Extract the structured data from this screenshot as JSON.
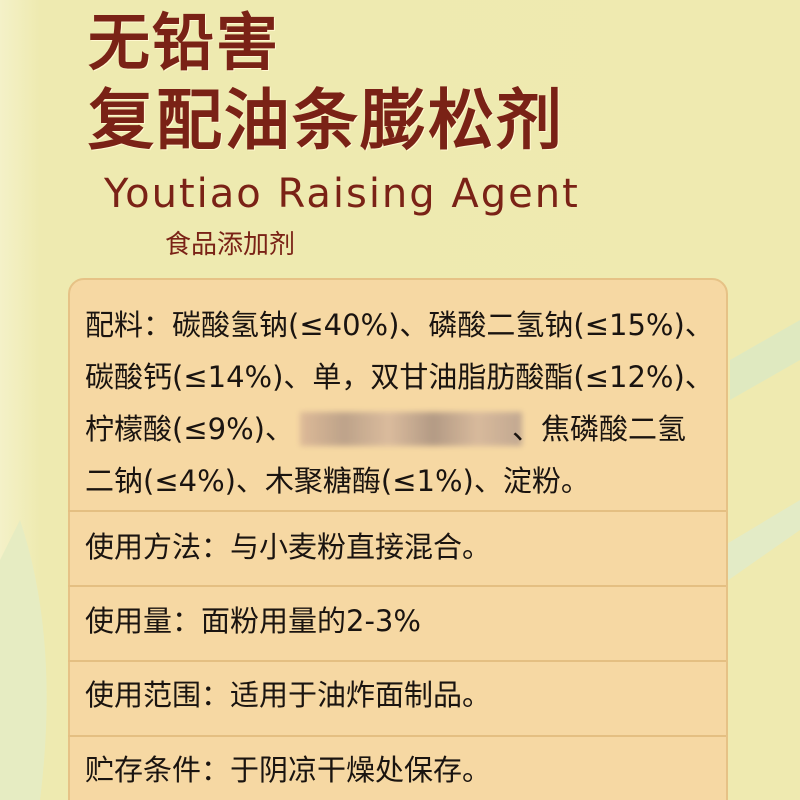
{
  "header": {
    "title_line1": "无铅害",
    "title_line2": "复配油条膨松剂",
    "subtitle": "Youtiao Raising Agent",
    "category": "食品添加剂"
  },
  "ingredients": {
    "lines": [
      [
        "配料：碳酸氢钠(≤40%)、磷酸二氢钠(≤15%)、"
      ],
      [
        "碳酸钙(≤14%)、单，双甘油脂肪酸酯(≤12%)、"
      ],
      [
        "柠檬酸(≤9%)、",
        "、焦磷酸二氢"
      ],
      [
        "二钠(≤4%)、木聚糖酶(≤1%)、淀粉。"
      ]
    ]
  },
  "rows": [
    "使用方法：与小麦粉直接混合。",
    "使用量：面粉用量的2-3%",
    "使用范围：适用于油炸面制品。",
    "贮存条件：于阴凉干燥处保存。"
  ]
}
